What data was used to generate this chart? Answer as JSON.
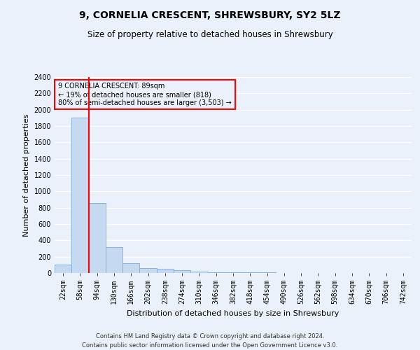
{
  "title": "9, CORNELIA CRESCENT, SHREWSBURY, SY2 5LZ",
  "subtitle": "Size of property relative to detached houses in Shrewsbury",
  "xlabel": "Distribution of detached houses by size in Shrewsbury",
  "ylabel": "Number of detached properties",
  "bar_labels": [
    "22sqm",
    "58sqm",
    "94sqm",
    "130sqm",
    "166sqm",
    "202sqm",
    "238sqm",
    "274sqm",
    "310sqm",
    "346sqm",
    "382sqm",
    "418sqm",
    "454sqm",
    "490sqm",
    "526sqm",
    "562sqm",
    "598sqm",
    "634sqm",
    "670sqm",
    "706sqm",
    "742sqm"
  ],
  "bar_values": [
    100,
    1900,
    860,
    315,
    120,
    60,
    50,
    35,
    20,
    10,
    5,
    5,
    5,
    0,
    0,
    0,
    0,
    0,
    0,
    0,
    0
  ],
  "bar_color": "#c5d9f0",
  "bar_edge_color": "#7aaddc",
  "vline_color": "red",
  "ylim": [
    0,
    2400
  ],
  "yticks": [
    0,
    200,
    400,
    600,
    800,
    1000,
    1200,
    1400,
    1600,
    1800,
    2000,
    2200,
    2400
  ],
  "annotation_text": "9 CORNELIA CRESCENT: 89sqm\n← 19% of detached houses are smaller (818)\n80% of semi-detached houses are larger (3,503) →",
  "annotation_box_color": "red",
  "footer_line1": "Contains HM Land Registry data © Crown copyright and database right 2024.",
  "footer_line2": "Contains public sector information licensed under the Open Government Licence v3.0.",
  "background_color": "#eaf1fb",
  "grid_color": "white",
  "title_fontsize": 10,
  "subtitle_fontsize": 8.5,
  "label_fontsize": 8,
  "tick_fontsize": 7,
  "footer_fontsize": 6,
  "ylabel_fontsize": 8
}
